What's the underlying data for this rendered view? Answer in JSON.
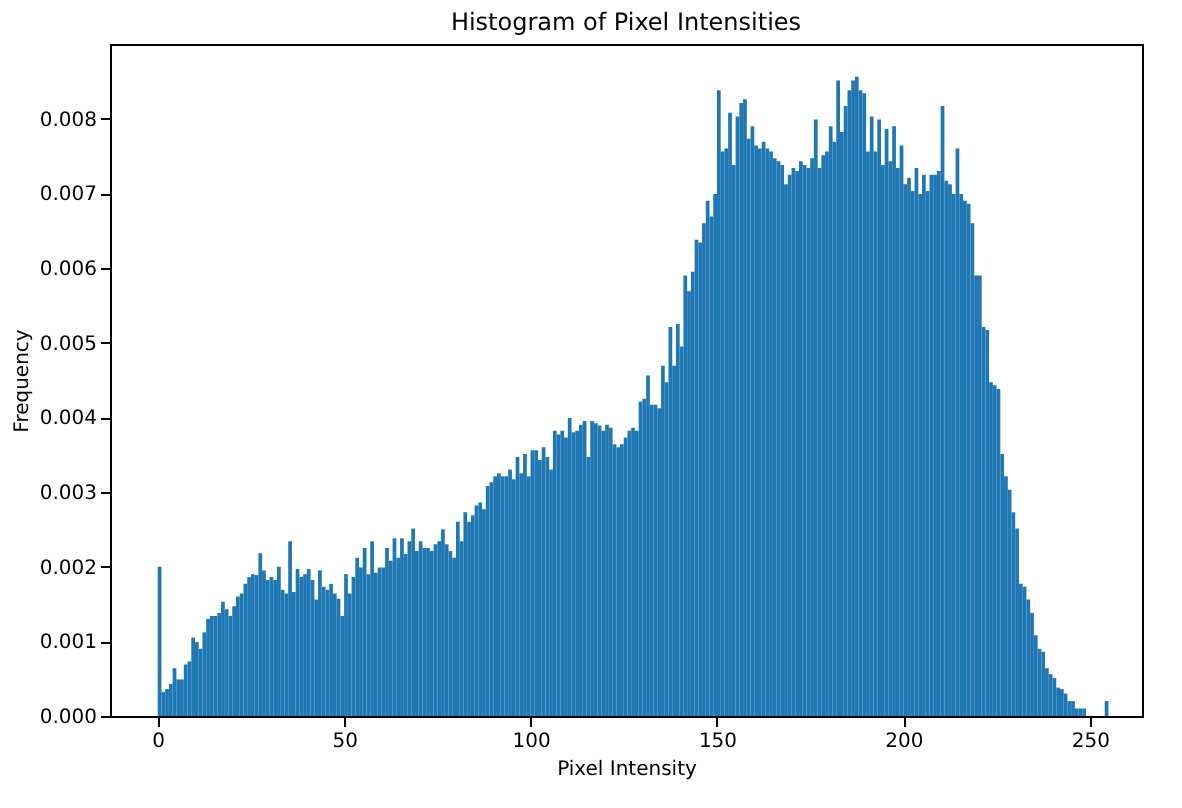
{
  "chart_data": {
    "type": "histogram",
    "title": "Histogram of Pixel Intensities",
    "xlabel": "Pixel Intensity",
    "ylabel": "Frequency",
    "color": "#1f77b4",
    "bins": [
      0,
      1,
      2,
      3,
      4,
      5,
      6,
      7,
      8,
      9,
      10,
      11,
      12,
      13,
      14,
      15,
      16,
      17,
      18,
      19,
      20,
      21,
      22,
      23,
      24,
      25,
      26,
      27,
      28,
      29,
      30,
      31,
      32,
      33,
      34,
      35,
      36,
      37,
      38,
      39,
      40,
      41,
      42,
      43,
      44,
      45,
      46,
      47,
      48,
      49,
      50,
      51,
      52,
      53,
      54,
      55,
      56,
      57,
      58,
      59,
      60,
      61,
      62,
      63,
      64,
      65,
      66,
      67,
      68,
      69,
      70,
      71,
      72,
      73,
      74,
      75,
      76,
      77,
      78,
      79,
      80,
      81,
      82,
      83,
      84,
      85,
      86,
      87,
      88,
      89,
      90,
      91,
      92,
      93,
      94,
      95,
      96,
      97,
      98,
      99,
      100,
      101,
      102,
      103,
      104,
      105,
      106,
      107,
      108,
      109,
      110,
      111,
      112,
      113,
      114,
      115,
      116,
      117,
      118,
      119,
      120,
      121,
      122,
      123,
      124,
      125,
      126,
      127,
      128,
      129,
      130,
      131,
      132,
      133,
      134,
      135,
      136,
      137,
      138,
      139,
      140,
      141,
      142,
      143,
      144,
      145,
      146,
      147,
      148,
      149,
      150,
      151,
      152,
      153,
      154,
      155,
      156,
      157,
      158,
      159,
      160,
      161,
      162,
      163,
      164,
      165,
      166,
      167,
      168,
      169,
      170,
      171,
      172,
      173,
      174,
      175,
      176,
      177,
      178,
      179,
      180,
      181,
      182,
      183,
      184,
      185,
      186,
      187,
      188,
      189,
      190,
      191,
      192,
      193,
      194,
      195,
      196,
      197,
      198,
      199,
      200,
      201,
      202,
      203,
      204,
      205,
      206,
      207,
      208,
      209,
      210,
      211,
      212,
      213,
      214,
      215,
      216,
      217,
      218,
      219,
      220,
      221,
      222,
      223,
      224,
      225,
      226,
      227,
      228,
      229,
      230,
      231,
      232,
      233,
      234,
      235,
      236,
      237,
      238,
      239,
      240,
      241,
      242,
      243,
      244,
      245,
      246,
      247,
      248,
      249,
      250,
      251,
      252,
      253,
      254,
      255,
      256
    ],
    "values": [
      0.002,
      0.00032,
      0.00036,
      0.00043,
      0.00064,
      0.00049,
      0.00049,
      0.00069,
      0.00073,
      0.00105,
      0.00099,
      0.0009,
      0.00112,
      0.0013,
      0.00134,
      0.00134,
      0.00138,
      0.00153,
      0.00143,
      0.00134,
      0.00147,
      0.0016,
      0.00164,
      0.00177,
      0.00186,
      0.0019,
      0.00189,
      0.00218,
      0.00195,
      0.00182,
      0.00186,
      0.00182,
      0.002,
      0.00169,
      0.00164,
      0.00234,
      0.00166,
      0.00197,
      0.00186,
      0.0019,
      0.00197,
      0.00182,
      0.00156,
      0.00195,
      0.00173,
      0.00169,
      0.00177,
      0.00164,
      0.00157,
      0.00134,
      0.0019,
      0.00164,
      0.00186,
      0.00212,
      0.00199,
      0.00225,
      0.0019,
      0.00234,
      0.00192,
      0.00199,
      0.00199,
      0.00225,
      0.00208,
      0.00238,
      0.00212,
      0.00238,
      0.00217,
      0.00234,
      0.00251,
      0.00221,
      0.00234,
      0.00225,
      0.00225,
      0.00221,
      0.0023,
      0.00234,
      0.0025,
      0.0023,
      0.00221,
      0.00212,
      0.0026,
      0.00234,
      0.00273,
      0.0026,
      0.00269,
      0.00282,
      0.00286,
      0.00277,
      0.00308,
      0.00313,
      0.00321,
      0.00325,
      0.00321,
      0.00321,
      0.0033,
      0.00317,
      0.00347,
      0.00325,
      0.00351,
      0.00321,
      0.00356,
      0.00356,
      0.00343,
      0.0036,
      0.00347,
      0.0033,
      0.00382,
      0.00377,
      0.00382,
      0.00373,
      0.00399,
      0.0038,
      0.00382,
      0.0039,
      0.00395,
      0.00347,
      0.00395,
      0.00392,
      0.00389,
      0.00382,
      0.0039,
      0.00386,
      0.00364,
      0.0036,
      0.00364,
      0.00373,
      0.00382,
      0.00386,
      0.00382,
      0.00421,
      0.00425,
      0.00456,
      0.00417,
      0.00417,
      0.00412,
      0.00469,
      0.00447,
      0.00521,
      0.00469,
      0.00525,
      0.00495,
      0.0059,
      0.00569,
      0.00595,
      0.00638,
      0.00634,
      0.0066,
      0.0069,
      0.00669,
      0.00699,
      0.00838,
      0.00756,
      0.0076,
      0.00808,
      0.00738,
      0.00803,
      0.00821,
      0.00826,
      0.00773,
      0.0079,
      0.00764,
      0.0076,
      0.00769,
      0.0076,
      0.00756,
      0.00747,
      0.00743,
      0.00738,
      0.00712,
      0.00725,
      0.00734,
      0.0073,
      0.00743,
      0.00738,
      0.00734,
      0.00747,
      0.00799,
      0.00734,
      0.00751,
      0.00756,
      0.0079,
      0.00769,
      0.00851,
      0.00782,
      0.00817,
      0.00838,
      0.00851,
      0.00856,
      0.00838,
      0.00834,
      0.00756,
      0.00803,
      0.00756,
      0.00799,
      0.00738,
      0.00786,
      0.00743,
      0.0079,
      0.00734,
      0.00764,
      0.00712,
      0.00721,
      0.00703,
      0.00734,
      0.00699,
      0.00725,
      0.00703,
      0.00725,
      0.00725,
      0.0073,
      0.00817,
      0.00717,
      0.00712,
      0.00699,
      0.0076,
      0.00699,
      0.0069,
      0.00686,
      0.0066,
      0.0059,
      0.0059,
      0.00521,
      0.00517,
      0.00447,
      0.00443,
      0.00438,
      0.00351,
      0.00321,
      0.00303,
      0.00273,
      0.00251,
      0.00177,
      0.00173,
      0.00156,
      0.00138,
      0.00108,
      0.0009,
      0.00086,
      0.00064,
      0.00056,
      0.00051,
      0.00038,
      0.00036,
      0.0003,
      0.0002,
      0.0002,
      0.0001,
      0.0001,
      0.0001,
      null,
      null,
      null,
      null,
      null,
      0.0002,
      null
    ],
    "xlim": [
      -12.8,
      264
    ],
    "xticks": [
      0,
      50,
      100,
      150,
      200,
      250
    ],
    "ylim": [
      0,
      0.009
    ],
    "yticks": [
      {
        "value": 0,
        "label": "0.000"
      },
      {
        "value": 0.001,
        "label": "0.001"
      },
      {
        "value": 0.002,
        "label": "0.002"
      },
      {
        "value": 0.003,
        "label": "0.003"
      },
      {
        "value": 0.004,
        "label": "0.004"
      },
      {
        "value": 0.005,
        "label": "0.005"
      },
      {
        "value": 0.006,
        "label": "0.006"
      },
      {
        "value": 0.007,
        "label": "0.007"
      },
      {
        "value": 0.008,
        "label": "0.008"
      }
    ]
  }
}
